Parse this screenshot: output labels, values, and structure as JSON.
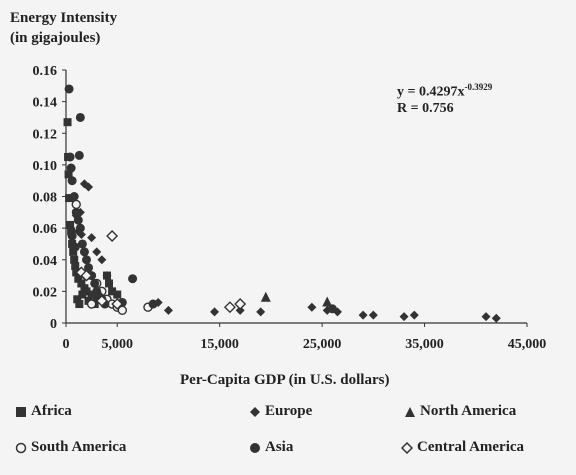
{
  "chart_data": {
    "type": "scatter",
    "title": "",
    "ylabel": "Energy Intensity",
    "ylabel_unit": "(in gigajoules)",
    "xlabel": "Per-Capita GDP (in U.S. dollars)",
    "xlim": [
      0,
      45000
    ],
    "ylim": [
      0,
      0.16
    ],
    "x_ticks": [
      0,
      5000,
      15000,
      25000,
      35000,
      45000
    ],
    "x_tick_labels": [
      "0",
      "5,000",
      "15,000",
      "25,000",
      "35,000",
      "45,000"
    ],
    "y_ticks": [
      0,
      0.02,
      0.04,
      0.06,
      0.08,
      0.1,
      0.12,
      0.14,
      0.16
    ],
    "y_tick_labels": [
      "0",
      "0.02",
      "0.04",
      "0.06",
      "0.08",
      "0.10",
      "0.12",
      "0.14",
      "0.16"
    ],
    "annotation": {
      "equation_base": "y = 0.4297x",
      "equation_exp": "-0.3929",
      "r_text": "R = 0.756"
    },
    "trendline": {
      "a": 0.4297,
      "b": -0.3929
    },
    "grid": false,
    "legend_position": "bottom",
    "series": [
      {
        "name": "Africa",
        "marker": "square",
        "color": "#333333",
        "points": [
          [
            150,
            0.127
          ],
          [
            200,
            0.105
          ],
          [
            250,
            0.094
          ],
          [
            300,
            0.079
          ],
          [
            400,
            0.062
          ],
          [
            500,
            0.058
          ],
          [
            600,
            0.05
          ],
          [
            700,
            0.045
          ],
          [
            800,
            0.04
          ],
          [
            900,
            0.036
          ],
          [
            1000,
            0.032
          ],
          [
            1200,
            0.028
          ],
          [
            1500,
            0.025
          ],
          [
            1800,
            0.022
          ],
          [
            2000,
            0.02
          ],
          [
            2500,
            0.018
          ],
          [
            3000,
            0.016
          ],
          [
            3500,
            0.015
          ],
          [
            4000,
            0.03
          ],
          [
            4200,
            0.025
          ],
          [
            4500,
            0.02
          ],
          [
            5000,
            0.018
          ],
          [
            1100,
            0.015
          ],
          [
            1300,
            0.012
          ],
          [
            2200,
            0.014
          ],
          [
            2800,
            0.012
          ],
          [
            1600,
            0.018
          ]
        ]
      },
      {
        "name": "Europe",
        "marker": "diamond",
        "color": "#333333",
        "points": [
          [
            1200,
            0.058
          ],
          [
            1500,
            0.056
          ],
          [
            1800,
            0.088
          ],
          [
            2200,
            0.086
          ],
          [
            2500,
            0.054
          ],
          [
            3000,
            0.045
          ],
          [
            3500,
            0.04
          ],
          [
            4000,
            0.03
          ],
          [
            8500,
            0.012
          ],
          [
            9000,
            0.013
          ],
          [
            10000,
            0.008
          ],
          [
            14500,
            0.007
          ],
          [
            17000,
            0.008
          ],
          [
            19000,
            0.007
          ],
          [
            24000,
            0.01
          ],
          [
            25500,
            0.008
          ],
          [
            26500,
            0.007
          ],
          [
            29000,
            0.005
          ],
          [
            30000,
            0.005
          ],
          [
            33000,
            0.004
          ],
          [
            34000,
            0.005
          ],
          [
            41000,
            0.004
          ],
          [
            42000,
            0.003
          ],
          [
            1000,
            0.068
          ],
          [
            1400,
            0.07
          ]
        ]
      },
      {
        "name": "North America",
        "marker": "triangle",
        "color": "#333333",
        "points": [
          [
            19500,
            0.016
          ],
          [
            25500,
            0.013
          ]
        ]
      },
      {
        "name": "South America",
        "marker": "circle-open",
        "color": "#333333",
        "points": [
          [
            1000,
            0.075
          ],
          [
            2000,
            0.03
          ],
          [
            3000,
            0.025
          ],
          [
            3500,
            0.02
          ],
          [
            4000,
            0.015
          ],
          [
            4500,
            0.012
          ],
          [
            5000,
            0.01
          ],
          [
            5500,
            0.008
          ],
          [
            8000,
            0.01
          ],
          [
            2500,
            0.012
          ]
        ]
      },
      {
        "name": "Asia",
        "marker": "circle",
        "color": "#333333",
        "points": [
          [
            300,
            0.148
          ],
          [
            400,
            0.105
          ],
          [
            500,
            0.098
          ],
          [
            600,
            0.09
          ],
          [
            800,
            0.08
          ],
          [
            1000,
            0.07
          ],
          [
            1200,
            0.065
          ],
          [
            1400,
            0.06
          ],
          [
            1600,
            0.05
          ],
          [
            1800,
            0.045
          ],
          [
            2000,
            0.04
          ],
          [
            2200,
            0.035
          ],
          [
            2500,
            0.03
          ],
          [
            2800,
            0.025
          ],
          [
            3000,
            0.02
          ],
          [
            3200,
            0.017
          ],
          [
            3500,
            0.015
          ],
          [
            3800,
            0.012
          ],
          [
            1300,
            0.106
          ],
          [
            1400,
            0.13
          ],
          [
            5500,
            0.013
          ],
          [
            6500,
            0.028
          ],
          [
            8500,
            0.012
          ],
          [
            26000,
            0.009
          ],
          [
            600,
            0.055
          ],
          [
            900,
            0.048
          ]
        ]
      },
      {
        "name": "Central America",
        "marker": "diamond-open",
        "color": "#333333",
        "points": [
          [
            1500,
            0.032
          ],
          [
            2000,
            0.03
          ],
          [
            3500,
            0.014
          ],
          [
            4500,
            0.055
          ],
          [
            5000,
            0.012
          ],
          [
            16000,
            0.01
          ],
          [
            17000,
            0.012
          ]
        ]
      }
    ]
  },
  "legend": [
    {
      "label": "Africa",
      "marker": "square"
    },
    {
      "label": "Europe",
      "marker": "diamond"
    },
    {
      "label": "North America",
      "marker": "triangle"
    },
    {
      "label": "South America",
      "marker": "circle-open"
    },
    {
      "label": "Asia",
      "marker": "circle"
    },
    {
      "label": "Central America",
      "marker": "diamond-open"
    }
  ]
}
